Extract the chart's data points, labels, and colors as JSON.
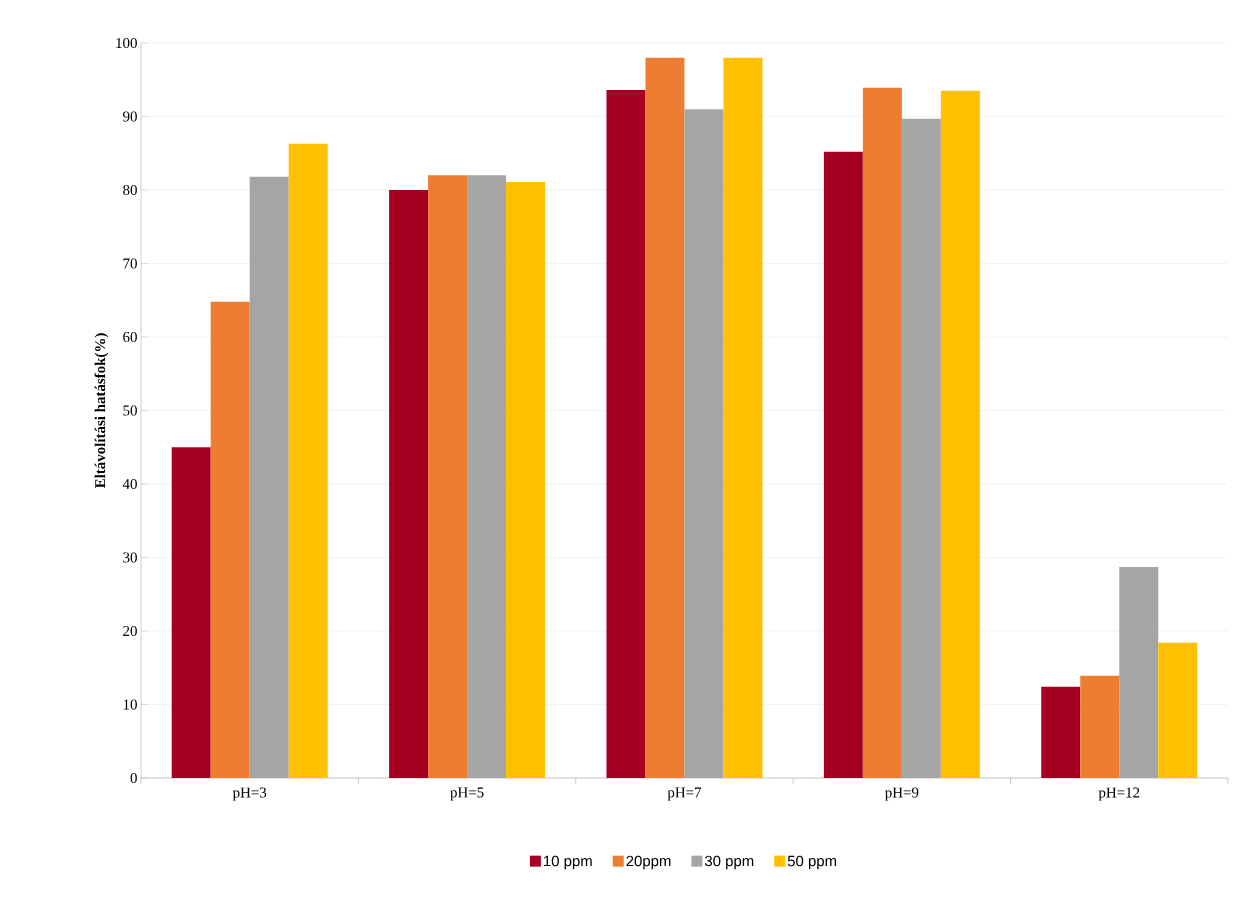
{
  "chart_data": {
    "type": "bar",
    "ylabel": "Eltávolítási hatásfok(%)",
    "categories": [
      "pH=3",
      "pH=5",
      "pH=7",
      "pH=9",
      "pH=12"
    ],
    "series": [
      {
        "name": "10 ppm",
        "color": "#a50021",
        "values": [
          45.0,
          80.0,
          93.6,
          85.2,
          12.4
        ]
      },
      {
        "name": "20ppm",
        "color": "#ed7d31",
        "values": [
          64.8,
          82.0,
          98.0,
          93.9,
          13.9
        ]
      },
      {
        "name": "30 ppm",
        "color": "#a5a5a5",
        "values": [
          81.8,
          82.0,
          91.0,
          89.7,
          28.7
        ]
      },
      {
        "name": "50 ppm",
        "color": "#ffc000",
        "values": [
          86.3,
          81.1,
          98.0,
          93.5,
          18.4
        ]
      }
    ],
    "ylim": [
      0,
      100
    ],
    "yticks": [
      0,
      10,
      20,
      30,
      40,
      50,
      60,
      70,
      80,
      90,
      100
    ],
    "grid": "y",
    "legend": "bottom"
  }
}
